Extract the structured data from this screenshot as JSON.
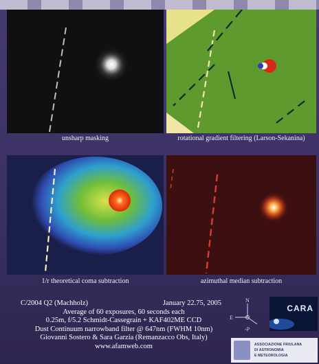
{
  "panels": [
    {
      "caption": "unsharp masking"
    },
    {
      "caption": "rotational gradient filtering (Larson-Sekanina)"
    },
    {
      "caption": "1/r theoretical coma subtraction"
    },
    {
      "caption": "azimuthal median subtraction"
    }
  ],
  "info": {
    "object": "C/2004 Q2 (Machholz)",
    "date": "January 22.75, 2005",
    "exposures": "Average of 60 exposures, 60 seconds each",
    "instrument": "0.25m, f/5.2 Schmidt-Cassegrain + KAF402ME CCD",
    "filter": "Dust Continuum narrowband filter @ 647nm (FWHM 10nm)",
    "observers": "Giovanni Sostero & Sara Garzia (Remanzacco Obs, Italy)",
    "website": "www.afamweb.com"
  },
  "compass": {
    "north": "N",
    "east": "E",
    "sun": "-P"
  },
  "logos": {
    "cara": "CARA",
    "observatory_lines": [
      "ASSOCIAZIONE FRIULANA",
      "DI ASTRONOMIA",
      "E METEOROLOGIA"
    ]
  },
  "colors": {
    "background": "#3b2f5c",
    "text": "#ffffff"
  }
}
